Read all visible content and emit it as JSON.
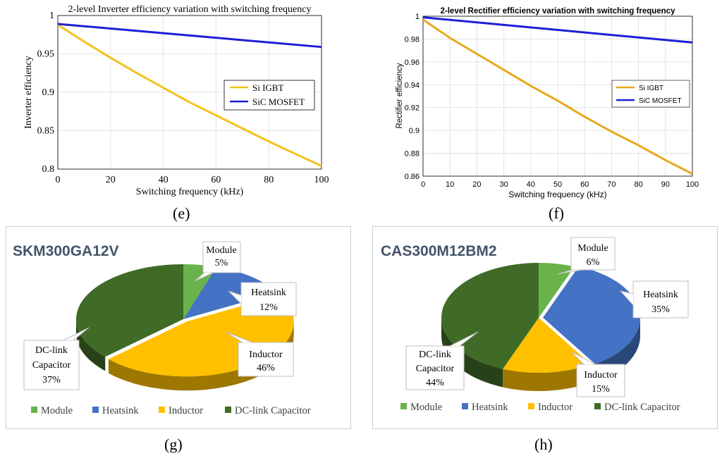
{
  "panels": {
    "e": "(e)",
    "f": "(f)",
    "g": "(g)",
    "h": "(h)"
  },
  "chart_data": [
    {
      "id": "e",
      "type": "line",
      "title": "2-level Inverter efficiency variation with switching frequency",
      "xlabel": "Switching frequency (kHz)",
      "ylabel": "Inverter efficiency",
      "xlim": [
        0,
        100
      ],
      "ylim": [
        0.8,
        1
      ],
      "xticks": [
        0,
        20,
        40,
        60,
        80,
        100
      ],
      "yticks": [
        0.8,
        0.85,
        0.9,
        0.95,
        1
      ],
      "ytick_labels": [
        "0.8",
        "0.85",
        "0.9",
        "0.95",
        "1"
      ],
      "grid": true,
      "legend_position": "right",
      "series": [
        {
          "name": "Si IGBT",
          "color": "#f2c21c",
          "x": [
            0,
            10,
            20,
            30,
            40,
            50,
            60,
            70,
            80,
            90,
            100
          ],
          "y": [
            0.988,
            0.966,
            0.945,
            0.925,
            0.906,
            0.887,
            0.87,
            0.853,
            0.836,
            0.82,
            0.804
          ]
        },
        {
          "name": "SiC MOSFET",
          "color": "#1e1ed8",
          "x": [
            0,
            100
          ],
          "y": [
            0.989,
            0.959
          ]
        }
      ]
    },
    {
      "id": "f",
      "type": "line",
      "title": "2-level Rectifier efficiency variation with switching frequency",
      "xlabel": "Switching frequency (kHz)",
      "ylabel": "Rectifier efficiency",
      "xlim": [
        0,
        100
      ],
      "ylim": [
        0.86,
        1
      ],
      "xticks": [
        0,
        10,
        20,
        30,
        40,
        50,
        60,
        70,
        80,
        90,
        100
      ],
      "yticks": [
        0.86,
        0.88,
        0.9,
        0.92,
        0.94,
        0.96,
        0.98,
        1
      ],
      "ytick_labels": [
        "0.86",
        "0.88",
        "0.9",
        "0.92",
        "0.94",
        "0.96",
        "0.98",
        "1"
      ],
      "grid": true,
      "legend_position": "right",
      "series": [
        {
          "name": "Si IGBT",
          "color": "#e8a91c",
          "x": [
            0,
            10,
            20,
            30,
            40,
            50,
            60,
            70,
            80,
            90,
            100
          ],
          "y": [
            0.997,
            0.981,
            0.967,
            0.953,
            0.939,
            0.926,
            0.912,
            0.899,
            0.887,
            0.874,
            0.862
          ]
        },
        {
          "name": "SiC MOSFET",
          "color": "#1e1ed8",
          "x": [
            0,
            100
          ],
          "y": [
            0.999,
            0.977
          ]
        }
      ]
    },
    {
      "id": "g",
      "type": "pie",
      "title": "SKM300GA12V",
      "slices": [
        {
          "name": "Module",
          "value": 5,
          "label": "Module\n5%",
          "color": "#6ab34a"
        },
        {
          "name": "Heatsink",
          "value": 12,
          "label": "Heatsink\n12%",
          "color": "#4472c4"
        },
        {
          "name": "Inductor",
          "value": 46,
          "label": "Inductor\n46%",
          "color": "#ffc000"
        },
        {
          "name": "DC-link Capacitor",
          "value": 37,
          "label": "DC-link\nCapacitor\n37%",
          "color": "#3f6b26"
        }
      ],
      "legend": [
        "Module",
        "Heatsink",
        "Inductor",
        "DC-link Capacitor"
      ]
    },
    {
      "id": "h",
      "type": "pie",
      "title": "CAS300M12BM2",
      "slices": [
        {
          "name": "Module",
          "value": 6,
          "label": "Module\n6%",
          "color": "#6ab34a"
        },
        {
          "name": "Heatsink",
          "value": 35,
          "label": "Heatsink\n35%",
          "color": "#4472c4"
        },
        {
          "name": "Inductor",
          "value": 15,
          "label": "Inductor\n15%",
          "color": "#ffc000"
        },
        {
          "name": "DC-link Capacitor",
          "value": 44,
          "label": "DC-link\nCapacitor\n44%",
          "color": "#3f6b26"
        }
      ],
      "legend": [
        "Module",
        "Heatsink",
        "Inductor",
        "DC-link Capacitor"
      ]
    }
  ]
}
